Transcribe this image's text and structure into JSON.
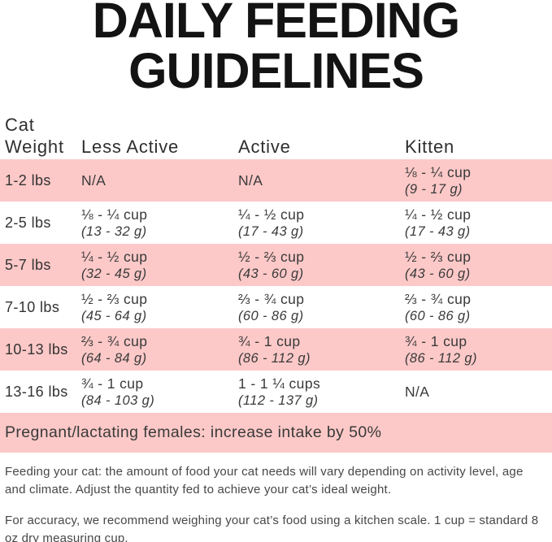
{
  "title": {
    "line1": "DAILY FEEDING",
    "line2": "GUIDELINES"
  },
  "table": {
    "header": {
      "col1_line1": "Cat",
      "col1_line2": "Weight",
      "col2": "Less Active",
      "col3": "Active",
      "col4": "Kitten"
    },
    "rows": [
      {
        "weight": "1-2 lbs",
        "less_active": {
          "amount": "N/A",
          "grams": ""
        },
        "active": {
          "amount": "N/A",
          "grams": ""
        },
        "kitten": {
          "amount": "⅛ - ¼ cup",
          "grams": "(9 - 17 g)"
        }
      },
      {
        "weight": "2-5 lbs",
        "less_active": {
          "amount": "⅛ - ¼ cup",
          "grams": "(13 - 32 g)"
        },
        "active": {
          "amount": "¼ - ½ cup",
          "grams": "(17 - 43 g)"
        },
        "kitten": {
          "amount": "¼ - ½ cup",
          "grams": "(17 - 43 g)"
        }
      },
      {
        "weight": "5-7 lbs",
        "less_active": {
          "amount": "¼ - ½ cup",
          "grams": "(32 - 45 g)"
        },
        "active": {
          "amount": "½ - ⅔ cup",
          "grams": "(43 - 60 g)"
        },
        "kitten": {
          "amount": "½ - ⅔ cup",
          "grams": "(43 - 60 g)"
        }
      },
      {
        "weight": "7-10 lbs",
        "less_active": {
          "amount": "½ - ⅔ cup",
          "grams": "(45 - 64 g)"
        },
        "active": {
          "amount": "⅔ - ¾ cup",
          "grams": "(60 - 86 g)"
        },
        "kitten": {
          "amount": "⅔ - ¾ cup",
          "grams": "(60 - 86 g)"
        }
      },
      {
        "weight": "10-13 lbs",
        "less_active": {
          "amount": "⅔ - ¾ cup",
          "grams": "(64 - 84 g)"
        },
        "active": {
          "amount": "¾ - 1 cup",
          "grams": "(86 - 112 g)"
        },
        "kitten": {
          "amount": "¾ - 1 cup",
          "grams": "(86 - 112 g)"
        }
      },
      {
        "weight": "13-16 lbs",
        "less_active": {
          "amount": "¾ - 1 cup",
          "grams": "(84 - 103 g)"
        },
        "active": {
          "amount": "1 - 1 ¼ cups",
          "grams": "(112 - 137 g)"
        },
        "kitten": {
          "amount": "N/A",
          "grams": ""
        }
      }
    ]
  },
  "banner": {
    "text": "Pregnant/lactating females: increase intake by 50%"
  },
  "notes": {
    "feeding": "Feeding your cat: the amount of food your cat needs will vary depending on activity level, age and climate. Adjust the quantity fed to achieve your cat’s ideal weight.",
    "accuracy": "For accuracy, we recommend weighing your cat’s food using a kitchen scale. 1 cup = standard 8 oz dry measuring cup."
  },
  "colors": {
    "row_highlight_pink": "#fcc9c8",
    "title_text": "#131313",
    "body_text": "#3a3a3a"
  }
}
